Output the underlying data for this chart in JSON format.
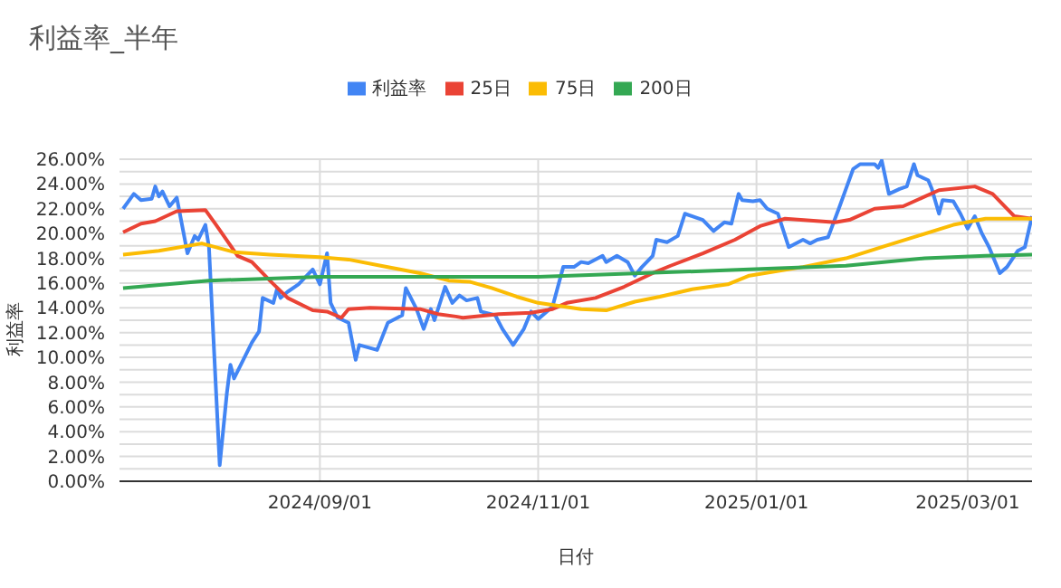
{
  "chart_data": {
    "type": "line",
    "title": "利益率_半年",
    "xlabel": "日付",
    "ylabel": "利益率",
    "legend": "top",
    "grid": true,
    "xlim": [
      "2024-07-07",
      "2025-03-19"
    ],
    "xticks": [
      {
        "value": "2024-09-01",
        "label": "2024/09/01"
      },
      {
        "value": "2024-11-01",
        "label": "2024/11/01"
      },
      {
        "value": "2025-01-01",
        "label": "2025/01/01"
      },
      {
        "value": "2025-03-01",
        "label": "2025/03/01"
      }
    ],
    "ylim": [
      0,
      26
    ],
    "yticks": [
      {
        "value": 0,
        "label": "0.00%"
      },
      {
        "value": 1,
        "label": null
      },
      {
        "value": 2,
        "label": "2.00%"
      },
      {
        "value": 3,
        "label": null
      },
      {
        "value": 4,
        "label": "4.00%"
      },
      {
        "value": 5,
        "label": null
      },
      {
        "value": 6,
        "label": "6.00%"
      },
      {
        "value": 7,
        "label": null
      },
      {
        "value": 8,
        "label": "8.00%"
      },
      {
        "value": 9,
        "label": null
      },
      {
        "value": 10,
        "label": "10.00%"
      },
      {
        "value": 11,
        "label": null
      },
      {
        "value": 12,
        "label": "12.00%"
      },
      {
        "value": 13,
        "label": null
      },
      {
        "value": 14,
        "label": "14.00%"
      },
      {
        "value": 15,
        "label": null
      },
      {
        "value": 16,
        "label": "16.00%"
      },
      {
        "value": 17,
        "label": null
      },
      {
        "value": 18,
        "label": "18.00%"
      },
      {
        "value": 19,
        "label": null
      },
      {
        "value": 20,
        "label": "20.00%"
      },
      {
        "value": 21,
        "label": null
      },
      {
        "value": 22,
        "label": "22.00%"
      },
      {
        "value": 23,
        "label": null
      },
      {
        "value": 24,
        "label": "24.00%"
      },
      {
        "value": 25,
        "label": null
      },
      {
        "value": 26,
        "label": "26.00%"
      }
    ],
    "series": [
      {
        "name": "利益率",
        "color": "#4285f4",
        "x": [
          "2024-07-08",
          "2024-07-11",
          "2024-07-13",
          "2024-07-16",
          "2024-07-17",
          "2024-07-18",
          "2024-07-19",
          "2024-07-21",
          "2024-07-23",
          "2024-07-26",
          "2024-07-28",
          "2024-07-29",
          "2024-07-31",
          "2024-08-01",
          "2024-08-04",
          "2024-08-06",
          "2024-08-07",
          "2024-08-08",
          "2024-08-13",
          "2024-08-15",
          "2024-08-16",
          "2024-08-19",
          "2024-08-20",
          "2024-08-21",
          "2024-08-23",
          "2024-08-26",
          "2024-08-30",
          "2024-09-01",
          "2024-09-03",
          "2024-09-04",
          "2024-09-06",
          "2024-09-09",
          "2024-09-11",
          "2024-09-12",
          "2024-09-17",
          "2024-09-20",
          "2024-09-24",
          "2024-09-25",
          "2024-09-28",
          "2024-09-30",
          "2024-10-02",
          "2024-10-03",
          "2024-10-06",
          "2024-10-08",
          "2024-10-10",
          "2024-10-12",
          "2024-10-15",
          "2024-10-16",
          "2024-10-20",
          "2024-10-22",
          "2024-10-25",
          "2024-10-28",
          "2024-10-30",
          "2024-11-01",
          "2024-11-05",
          "2024-11-08",
          "2024-11-11",
          "2024-11-13",
          "2024-11-15",
          "2024-11-19",
          "2024-11-20",
          "2024-11-23",
          "2024-11-26",
          "2024-11-28",
          "2024-11-30",
          "2024-12-03",
          "2024-12-04",
          "2024-12-07",
          "2024-12-10",
          "2024-12-12",
          "2024-12-17",
          "2024-12-20",
          "2024-12-23",
          "2024-12-25",
          "2024-12-27",
          "2024-12-28",
          "2024-12-31",
          "2025-01-02",
          "2025-01-04",
          "2025-01-07",
          "2025-01-08",
          "2025-01-10",
          "2025-01-14",
          "2025-01-16",
          "2025-01-18",
          "2025-01-21",
          "2025-01-24",
          "2025-01-26",
          "2025-01-28",
          "2025-01-30",
          "2025-02-03",
          "2025-02-04",
          "2025-02-05",
          "2025-02-07",
          "2025-02-10",
          "2025-02-12",
          "2025-02-14",
          "2025-02-15",
          "2025-02-18",
          "2025-02-19",
          "2025-02-21",
          "2025-02-22",
          "2025-02-25",
          "2025-02-27",
          "2025-03-01",
          "2025-03-03",
          "2025-03-05",
          "2025-03-07",
          "2025-03-10",
          "2025-03-12",
          "2025-03-15",
          "2025-03-17",
          "2025-03-19"
        ],
        "values": [
          22.0,
          23.2,
          22.7,
          22.8,
          23.8,
          23.0,
          23.4,
          22.2,
          22.9,
          18.4,
          19.8,
          19.5,
          20.7,
          18.9,
          1.3,
          7.1,
          9.4,
          8.3,
          11.2,
          12.1,
          14.8,
          14.4,
          15.5,
          14.8,
          15.3,
          15.9,
          17.1,
          15.9,
          18.4,
          14.4,
          13.2,
          12.8,
          9.8,
          11.0,
          10.6,
          12.8,
          13.4,
          15.6,
          13.9,
          12.3,
          13.9,
          13.0,
          15.7,
          14.4,
          15.0,
          14.6,
          14.8,
          13.7,
          13.4,
          12.3,
          11.0,
          12.3,
          13.7,
          13.1,
          14.1,
          17.3,
          17.3,
          17.7,
          17.6,
          18.2,
          17.7,
          18.2,
          17.7,
          16.6,
          17.3,
          18.2,
          19.5,
          19.3,
          19.8,
          21.6,
          21.1,
          20.2,
          20.9,
          20.8,
          23.2,
          22.7,
          22.6,
          22.7,
          22.0,
          21.6,
          20.7,
          18.9,
          19.5,
          19.2,
          19.5,
          19.7,
          22.0,
          23.6,
          25.2,
          25.6,
          25.6,
          25.3,
          25.9,
          23.2,
          23.6,
          23.8,
          25.6,
          24.7,
          24.3,
          23.6,
          21.6,
          22.7,
          22.6,
          21.6,
          20.4,
          21.4,
          20.0,
          18.9,
          16.8,
          17.3,
          18.6,
          18.9,
          21.4
        ]
      },
      {
        "name": "25日",
        "color": "#ea4335",
        "x": [
          "2024-07-08",
          "2024-07-13",
          "2024-07-17",
          "2024-07-23",
          "2024-07-31",
          "2024-08-03",
          "2024-08-09",
          "2024-08-13",
          "2024-08-18",
          "2024-08-23",
          "2024-08-30",
          "2024-09-03",
          "2024-09-07",
          "2024-09-09",
          "2024-09-15",
          "2024-09-29",
          "2024-10-04",
          "2024-10-09",
          "2024-10-11",
          "2024-10-21",
          "2024-10-30",
          "2024-11-05",
          "2024-11-09",
          "2024-11-17",
          "2024-11-25",
          "2024-12-03",
          "2024-12-08",
          "2024-12-17",
          "2024-12-26",
          "2025-01-02",
          "2025-01-09",
          "2025-01-23",
          "2025-01-27",
          "2025-02-03",
          "2025-02-11",
          "2025-02-21",
          "2025-03-03",
          "2025-03-08",
          "2025-03-14",
          "2025-03-19"
        ],
        "values": [
          20.1,
          20.8,
          21.0,
          21.8,
          21.9,
          20.7,
          18.2,
          17.7,
          16.2,
          14.8,
          13.8,
          13.7,
          13.2,
          13.9,
          14.0,
          13.9,
          13.5,
          13.3,
          13.2,
          13.5,
          13.6,
          13.9,
          14.4,
          14.8,
          15.7,
          16.8,
          17.4,
          18.4,
          19.5,
          20.6,
          21.2,
          20.9,
          21.1,
          22.0,
          22.2,
          23.5,
          23.8,
          23.2,
          21.4,
          21.2
        ]
      },
      {
        "name": "75日",
        "color": "#fbbc04",
        "x": [
          "2024-07-08",
          "2024-07-18",
          "2024-07-30",
          "2024-08-08",
          "2024-08-18",
          "2024-09-01",
          "2024-09-09",
          "2024-09-18",
          "2024-09-29",
          "2024-10-07",
          "2024-10-13",
          "2024-10-19",
          "2024-10-26",
          "2024-11-01",
          "2024-11-13",
          "2024-11-20",
          "2024-11-28",
          "2024-12-05",
          "2024-12-14",
          "2024-12-24",
          "2024-12-30",
          "2025-01-14",
          "2025-01-26",
          "2025-02-06",
          "2025-02-15",
          "2025-02-25",
          "2025-03-06",
          "2025-03-19"
        ],
        "values": [
          18.3,
          18.6,
          19.2,
          18.5,
          18.3,
          18.1,
          17.9,
          17.4,
          16.8,
          16.2,
          16.1,
          15.6,
          14.9,
          14.4,
          13.9,
          13.8,
          14.5,
          14.9,
          15.5,
          15.9,
          16.6,
          17.3,
          18.0,
          19.0,
          19.8,
          20.7,
          21.2,
          21.2
        ]
      },
      {
        "name": "200日",
        "color": "#34a853",
        "x": [
          "2024-07-08",
          "2024-08-01",
          "2024-09-01",
          "2024-11-01",
          "2024-12-30",
          "2025-01-26",
          "2025-02-17",
          "2025-03-06",
          "2025-03-19"
        ],
        "values": [
          15.6,
          16.2,
          16.5,
          16.5,
          17.1,
          17.4,
          18.0,
          18.2,
          18.3
        ]
      }
    ]
  }
}
